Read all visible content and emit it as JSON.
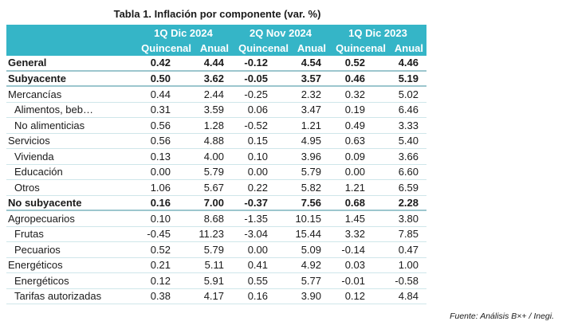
{
  "title": "Tabla 1. Inflación por componente (var. %)",
  "groups": [
    "1Q Dic 2024",
    "2Q Nov 2024",
    "1Q Dic 2023"
  ],
  "subheaders": [
    "Quincenal",
    "Anual"
  ],
  "rows": [
    {
      "label": "General",
      "bold": true,
      "sub": false,
      "values": [
        "0.42",
        "4.44",
        "-0.12",
        "4.54",
        "0.52",
        "4.46"
      ]
    },
    {
      "label": "Subyacente",
      "bold": true,
      "sub": false,
      "values": [
        "0.50",
        "3.62",
        "-0.05",
        "3.57",
        "0.46",
        "5.19"
      ]
    },
    {
      "label": "Mercancías",
      "bold": false,
      "sub": false,
      "values": [
        "0.44",
        "2.44",
        "-0.25",
        "2.32",
        "0.32",
        "5.02"
      ]
    },
    {
      "label": "Alimentos, beb…",
      "bold": false,
      "sub": true,
      "values": [
        "0.31",
        "3.59",
        "0.06",
        "3.47",
        "0.19",
        "6.46"
      ]
    },
    {
      "label": "No alimenticias",
      "bold": false,
      "sub": true,
      "values": [
        "0.56",
        "1.28",
        "-0.52",
        "1.21",
        "0.49",
        "3.33"
      ]
    },
    {
      "label": "Servicios",
      "bold": false,
      "sub": false,
      "values": [
        "0.56",
        "4.88",
        "0.15",
        "4.95",
        "0.63",
        "5.40"
      ]
    },
    {
      "label": "Vivienda",
      "bold": false,
      "sub": true,
      "values": [
        "0.13",
        "4.00",
        "0.10",
        "3.96",
        "0.09",
        "3.66"
      ]
    },
    {
      "label": "Educación",
      "bold": false,
      "sub": true,
      "values": [
        "0.00",
        "5.79",
        "0.00",
        "5.79",
        "0.00",
        "6.60"
      ]
    },
    {
      "label": "Otros",
      "bold": false,
      "sub": true,
      "values": [
        "1.06",
        "5.67",
        "0.22",
        "5.82",
        "1.21",
        "6.59"
      ]
    },
    {
      "label": "No subyacente",
      "bold": true,
      "sub": false,
      "values": [
        "0.16",
        "7.00",
        "-0.37",
        "7.56",
        "0.68",
        "2.28"
      ]
    },
    {
      "label": "Agropecuarios",
      "bold": false,
      "sub": false,
      "values": [
        "0.10",
        "8.68",
        "-1.35",
        "10.15",
        "1.45",
        "3.80"
      ]
    },
    {
      "label": "Frutas",
      "bold": false,
      "sub": true,
      "values": [
        "-0.45",
        "11.23",
        "-3.04",
        "15.44",
        "3.32",
        "7.85"
      ]
    },
    {
      "label": "Pecuarios",
      "bold": false,
      "sub": true,
      "values": [
        "0.52",
        "5.79",
        "0.00",
        "5.09",
        "-0.14",
        "0.47"
      ]
    },
    {
      "label": "Energéticos",
      "bold": false,
      "sub": false,
      "values": [
        "0.21",
        "5.11",
        "0.41",
        "4.92",
        "0.03",
        "1.00"
      ]
    },
    {
      "label": "Energéticos",
      "bold": false,
      "sub": true,
      "values": [
        "0.12",
        "5.91",
        "0.55",
        "5.77",
        "-0.01",
        "-0.58"
      ]
    },
    {
      "label": "Tarifas autorizadas",
      "bold": false,
      "sub": true,
      "values": [
        "0.38",
        "4.17",
        "0.16",
        "3.90",
        "0.12",
        "4.84"
      ]
    }
  ],
  "source": "Fuente: Análisis B×+ /  Inegi."
}
